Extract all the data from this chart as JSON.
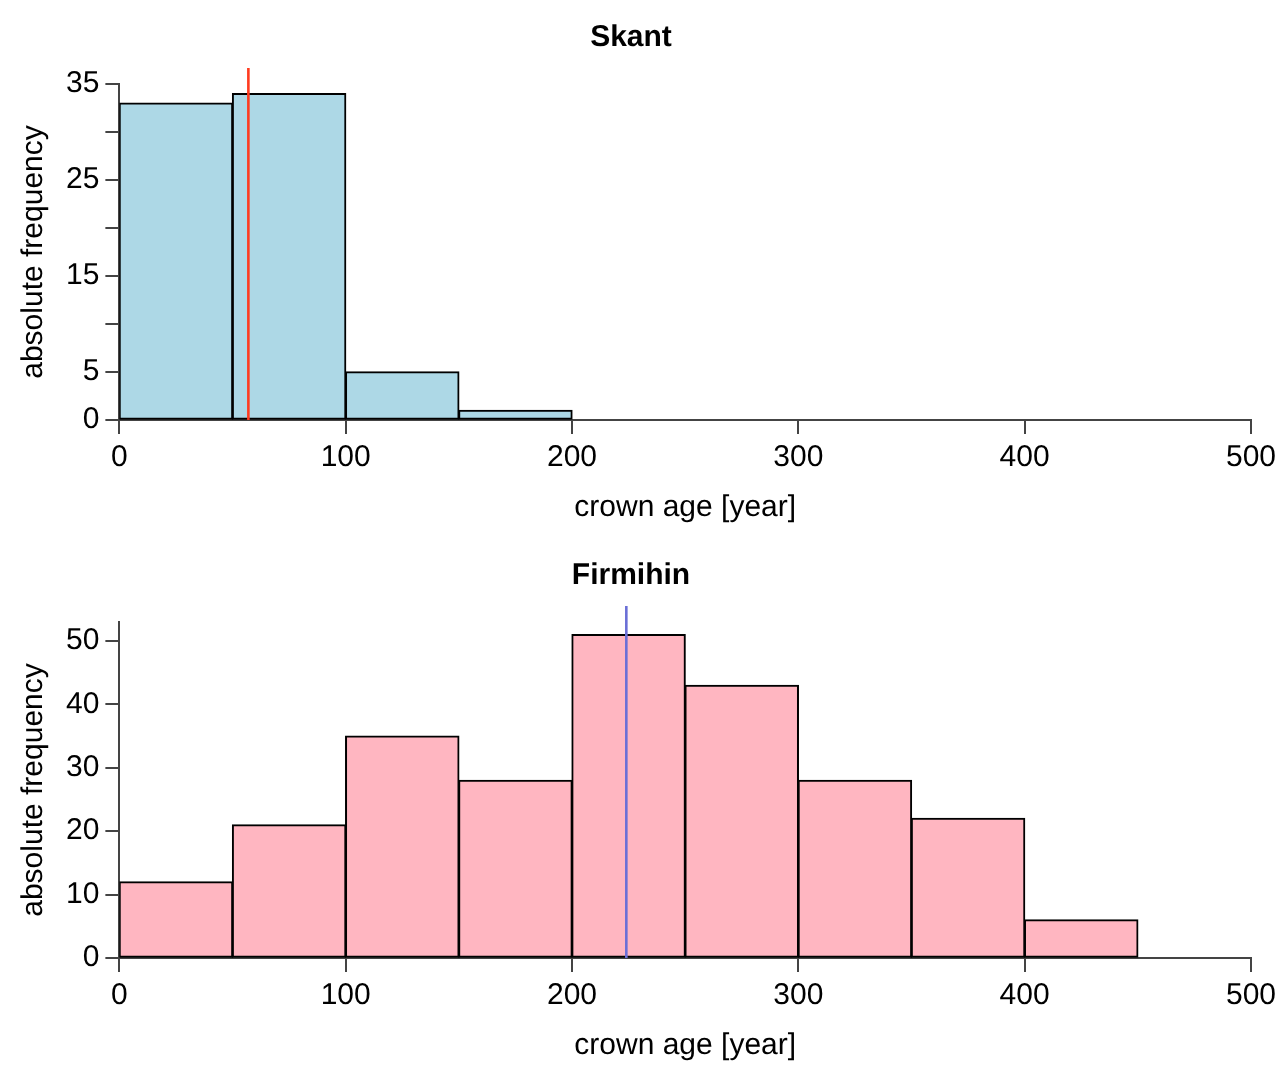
{
  "chart_data": [
    {
      "type": "histogram",
      "title": "Skant",
      "xlabel": "crown age [year]",
      "ylabel": "absolute frequency",
      "bins": [
        0,
        50,
        100,
        150,
        200,
        250,
        300,
        350,
        400,
        450,
        500
      ],
      "values": [
        33,
        34,
        5,
        1,
        0,
        0,
        0,
        0,
        0,
        0
      ],
      "color": "#add8e6",
      "xlim": [
        0,
        500
      ],
      "xticks": [
        0,
        100,
        200,
        300,
        400,
        500
      ],
      "ylim": [
        0,
        35
      ],
      "yticks": [
        0,
        5,
        {
          "value": 10,
          "label": null
        },
        15,
        {
          "value": 20,
          "label": null
        },
        25,
        {
          "value": 30,
          "label": null
        },
        35
      ],
      "grid": false,
      "ref_lines": [
        {
          "axis": "x",
          "value": 57,
          "color": "#ff3b1f"
        }
      ]
    },
    {
      "type": "histogram",
      "title": "Firmihin",
      "xlabel": "crown age [year]",
      "ylabel": "absolute frequency",
      "bins": [
        0,
        50,
        100,
        150,
        200,
        250,
        300,
        350,
        400,
        450,
        500
      ],
      "values": [
        12,
        21,
        35,
        28,
        51,
        43,
        28,
        22,
        6,
        0
      ],
      "color": "#ffb6c1",
      "xlim": [
        0,
        500
      ],
      "xticks": [
        0,
        100,
        200,
        300,
        400,
        500
      ],
      "ylim": [
        0,
        53
      ],
      "yticks": [
        0,
        10,
        20,
        30,
        40,
        50
      ],
      "grid": false,
      "ref_lines": [
        {
          "axis": "x",
          "value": 224,
          "color": "#6a6fd6"
        }
      ]
    }
  ]
}
